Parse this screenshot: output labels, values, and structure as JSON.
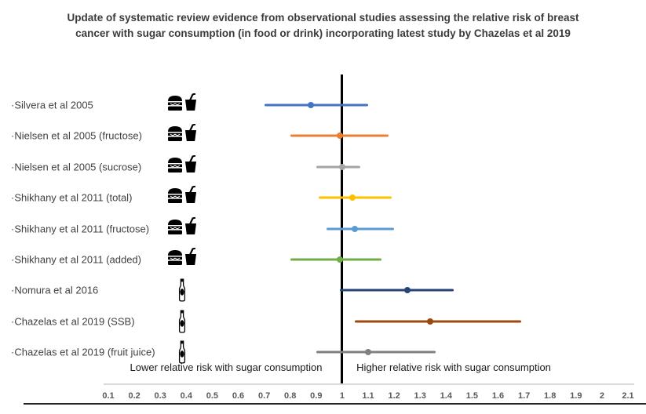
{
  "title": "Update of systematic review evidence from observational studies assessing the relative risk of breast cancer with sugar consumption (in food or drink) incorporating latest study by Chazelas et al 2019",
  "chart_data": {
    "type": "scatter",
    "variant": "forest-plot",
    "title": "Update of systematic review evidence from observational studies assessing the relative risk of breast cancer with sugar consumption (in food or drink) incorporating latest study by Chazelas et al 2019",
    "xlabel": "",
    "ylabel": "",
    "xlim": [
      0.1,
      2.1
    ],
    "grid": false,
    "reference_line_x": 1,
    "x_ticks": [
      "0.1",
      "0.2",
      "0.3",
      "0.4",
      "0.5",
      "0.6",
      "0.7",
      "0.8",
      "0.9",
      "1",
      "1.1",
      "1.2",
      "1.3",
      "1.4",
      "1.5",
      "1.6",
      "1.7",
      "1.8",
      "1.9",
      "2",
      "2.1"
    ],
    "annotations": {
      "lower": "Lower relative risk with sugar consumption",
      "higher": "Higher relative risk with sugar consumption"
    },
    "studies": [
      {
        "label": "·Silvera et al 2005",
        "icon": "food-and-drink",
        "color": "#4472C4",
        "estimate": 0.88,
        "ci_low": 0.7,
        "ci_high": 1.1
      },
      {
        "label": "·Nielsen et al 2005 (fructose)",
        "icon": "food-and-drink",
        "color": "#ED7D31",
        "estimate": 0.99,
        "ci_low": 0.8,
        "ci_high": 1.18
      },
      {
        "label": "·Nielsen et al 2005 (sucrose)",
        "icon": "food-and-drink",
        "color": "#A5A5A5",
        "estimate": 1.0,
        "ci_low": 0.9,
        "ci_high": 1.07
      },
      {
        "label": "·Shikhany et al 2011 (total)",
        "icon": "food-and-drink",
        "color": "#FFC000",
        "estimate": 1.04,
        "ci_low": 0.91,
        "ci_high": 1.19
      },
      {
        "label": "·Shikhany et al 2011 (fructose)",
        "icon": "food-and-drink",
        "color": "#5B9BD5",
        "estimate": 1.05,
        "ci_low": 0.94,
        "ci_high": 1.2
      },
      {
        "label": "·Shikhany et al 2011 (added)",
        "icon": "food-and-drink",
        "color": "#70AD47",
        "estimate": 0.99,
        "ci_low": 0.8,
        "ci_high": 1.15
      },
      {
        "label": "·Nomura et al 2016",
        "icon": "bottle",
        "color": "#264478",
        "estimate": 1.25,
        "ci_low": 0.99,
        "ci_high": 1.43
      },
      {
        "label": "·Chazelas et al 2019 (SSB)",
        "icon": "bottle",
        "color": "#9E480E",
        "estimate": 1.34,
        "ci_low": 1.05,
        "ci_high": 1.69
      },
      {
        "label": "·Chazelas et al 2019 (fruit juice)",
        "icon": "bottle",
        "color": "#808080",
        "estimate": 1.1,
        "ci_low": 0.9,
        "ci_high": 1.36
      }
    ]
  }
}
